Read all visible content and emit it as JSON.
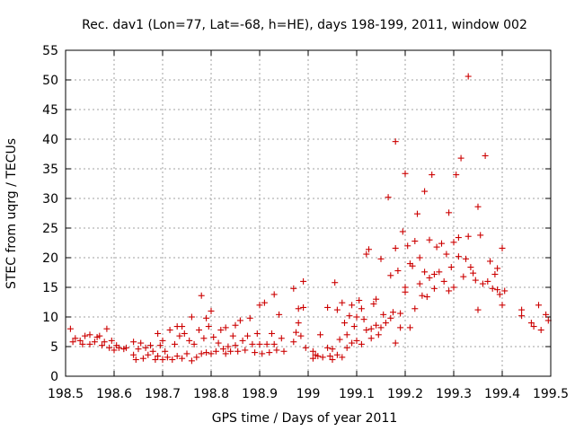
{
  "chart_data": {
    "type": "scatter",
    "title": "Rec. dav1 (Lon=77, Lat=-68, h=HE), days 198-199, 2011, window 002",
    "xlabel": "GPS time / Days of year 2011",
    "ylabel": "STEC from uqrg / TECUs",
    "xlim": [
      198.5,
      199.5
    ],
    "ylim": [
      0,
      55
    ],
    "xticks": [
      "198.5",
      "198.6",
      "198.7",
      "198.8",
      "198.9",
      "199",
      "199.1",
      "199.2",
      "199.3",
      "199.4",
      "199.5"
    ],
    "yticks": [
      "0",
      "5",
      "10",
      "15",
      "20",
      "25",
      "30",
      "35",
      "40",
      "45",
      "50",
      "55"
    ],
    "grid": true,
    "marker": "+",
    "color": "#cc0000",
    "points": [
      [
        198.51,
        8.0
      ],
      [
        198.515,
        5.8
      ],
      [
        198.52,
        6.4
      ],
      [
        198.53,
        6.0
      ],
      [
        198.535,
        5.4
      ],
      [
        198.54,
        6.8
      ],
      [
        198.55,
        7.0
      ],
      [
        198.55,
        5.4
      ],
      [
        198.56,
        5.8
      ],
      [
        198.565,
        6.6
      ],
      [
        198.57,
        6.8
      ],
      [
        198.575,
        5.2
      ],
      [
        198.58,
        5.8
      ],
      [
        198.585,
        8.0
      ],
      [
        198.59,
        4.8
      ],
      [
        198.595,
        6.0
      ],
      [
        198.6,
        4.4
      ],
      [
        198.605,
        5.2
      ],
      [
        198.61,
        4.8
      ],
      [
        198.62,
        4.6
      ],
      [
        198.625,
        4.8
      ],
      [
        198.64,
        5.8
      ],
      [
        198.64,
        3.6
      ],
      [
        198.645,
        2.8
      ],
      [
        198.65,
        4.6
      ],
      [
        198.655,
        5.6
      ],
      [
        198.66,
        3.0
      ],
      [
        198.665,
        4.8
      ],
      [
        198.67,
        3.6
      ],
      [
        198.675,
        5.2
      ],
      [
        198.68,
        4.2
      ],
      [
        198.685,
        2.8
      ],
      [
        198.69,
        7.2
      ],
      [
        198.69,
        3.4
      ],
      [
        198.695,
        5.2
      ],
      [
        198.7,
        6.0
      ],
      [
        198.7,
        2.8
      ],
      [
        198.705,
        4.2
      ],
      [
        198.71,
        3.2
      ],
      [
        198.715,
        7.8
      ],
      [
        198.72,
        2.8
      ],
      [
        198.725,
        5.4
      ],
      [
        198.73,
        8.4
      ],
      [
        198.73,
        3.4
      ],
      [
        198.735,
        6.8
      ],
      [
        198.74,
        8.4
      ],
      [
        198.74,
        3.0
      ],
      [
        198.745,
        7.2
      ],
      [
        198.75,
        3.8
      ],
      [
        198.755,
        6.0
      ],
      [
        198.76,
        10.0
      ],
      [
        198.76,
        2.6
      ],
      [
        198.765,
        5.4
      ],
      [
        198.77,
        3.2
      ],
      [
        198.775,
        7.8
      ],
      [
        198.78,
        13.6
      ],
      [
        198.78,
        3.8
      ],
      [
        198.785,
        6.4
      ],
      [
        198.79,
        9.8
      ],
      [
        198.79,
        4.0
      ],
      [
        198.795,
        8.4
      ],
      [
        198.8,
        11.0
      ],
      [
        198.8,
        3.8
      ],
      [
        198.805,
        6.6
      ],
      [
        198.81,
        4.2
      ],
      [
        198.815,
        5.6
      ],
      [
        198.82,
        7.8
      ],
      [
        198.825,
        4.6
      ],
      [
        198.83,
        8.2
      ],
      [
        198.83,
        3.8
      ],
      [
        198.835,
        5.0
      ],
      [
        198.84,
        4.2
      ],
      [
        198.845,
        6.8
      ],
      [
        198.85,
        8.6
      ],
      [
        198.85,
        5.2
      ],
      [
        198.855,
        4.2
      ],
      [
        198.86,
        9.4
      ],
      [
        198.865,
        6.0
      ],
      [
        198.87,
        4.4
      ],
      [
        198.875,
        6.8
      ],
      [
        198.88,
        9.8
      ],
      [
        198.885,
        5.4
      ],
      [
        198.89,
        4.0
      ],
      [
        198.895,
        7.2
      ],
      [
        198.9,
        12.0
      ],
      [
        198.9,
        5.4
      ],
      [
        198.905,
        3.8
      ],
      [
        198.91,
        12.4
      ],
      [
        198.915,
        5.4
      ],
      [
        198.92,
        4.0
      ],
      [
        198.925,
        7.2
      ],
      [
        198.93,
        13.8
      ],
      [
        198.93,
        5.4
      ],
      [
        198.935,
        4.4
      ],
      [
        198.94,
        10.4
      ],
      [
        198.945,
        6.4
      ],
      [
        198.95,
        4.2
      ],
      [
        198.97,
        14.8
      ],
      [
        198.97,
        5.8
      ],
      [
        198.975,
        7.4
      ],
      [
        198.98,
        11.4
      ],
      [
        198.98,
        9.0
      ],
      [
        198.985,
        6.8
      ],
      [
        198.99,
        16.0
      ],
      [
        198.99,
        11.6
      ],
      [
        198.995,
        4.8
      ],
      [
        199.01,
        4.2
      ],
      [
        199.01,
        3.0
      ],
      [
        199.015,
        3.6
      ],
      [
        199.02,
        3.4
      ],
      [
        199.025,
        7.0
      ],
      [
        199.03,
        3.2
      ],
      [
        199.04,
        11.6
      ],
      [
        199.04,
        4.8
      ],
      [
        199.045,
        3.4
      ],
      [
        199.05,
        4.6
      ],
      [
        199.05,
        2.8
      ],
      [
        199.055,
        15.8
      ],
      [
        199.06,
        11.2
      ],
      [
        199.06,
        3.6
      ],
      [
        199.065,
        6.2
      ],
      [
        199.07,
        12.4
      ],
      [
        199.07,
        3.2
      ],
      [
        199.075,
        9.0
      ],
      [
        199.08,
        7.0
      ],
      [
        199.08,
        4.8
      ],
      [
        199.085,
        10.2
      ],
      [
        199.09,
        5.6
      ],
      [
        199.09,
        12.0
      ],
      [
        199.095,
        8.4
      ],
      [
        199.1,
        10.0
      ],
      [
        199.1,
        6.0
      ],
      [
        199.105,
        12.8
      ],
      [
        199.11,
        11.4
      ],
      [
        199.11,
        5.4
      ],
      [
        199.115,
        9.6
      ],
      [
        199.12,
        7.8
      ],
      [
        199.12,
        20.6
      ],
      [
        199.125,
        21.4
      ],
      [
        199.13,
        8.0
      ],
      [
        199.13,
        6.4
      ],
      [
        199.135,
        12.2
      ],
      [
        199.14,
        13.0
      ],
      [
        199.14,
        8.6
      ],
      [
        199.145,
        7.0
      ],
      [
        199.15,
        19.8
      ],
      [
        199.15,
        8.2
      ],
      [
        199.155,
        10.4
      ],
      [
        199.16,
        9.0
      ],
      [
        199.165,
        30.2
      ],
      [
        199.17,
        17.0
      ],
      [
        199.17,
        9.8
      ],
      [
        199.175,
        10.8
      ],
      [
        199.18,
        39.6
      ],
      [
        199.18,
        21.6
      ],
      [
        199.18,
        5.6
      ],
      [
        199.185,
        17.8
      ],
      [
        199.19,
        10.6
      ],
      [
        199.19,
        8.2
      ],
      [
        199.195,
        24.4
      ],
      [
        199.2,
        15.0
      ],
      [
        199.2,
        34.2
      ],
      [
        199.2,
        14.2
      ],
      [
        199.205,
        22.0
      ],
      [
        199.21,
        8.2
      ],
      [
        199.21,
        19.0
      ],
      [
        199.215,
        18.6
      ],
      [
        199.22,
        22.8
      ],
      [
        199.22,
        11.4
      ],
      [
        199.225,
        27.4
      ],
      [
        199.23,
        20.0
      ],
      [
        199.23,
        15.6
      ],
      [
        199.235,
        13.6
      ],
      [
        199.24,
        31.2
      ],
      [
        199.24,
        17.6
      ],
      [
        199.245,
        13.4
      ],
      [
        199.25,
        23.0
      ],
      [
        199.25,
        16.6
      ],
      [
        199.255,
        34.0
      ],
      [
        199.26,
        17.2
      ],
      [
        199.26,
        14.8
      ],
      [
        199.265,
        21.8
      ],
      [
        199.27,
        17.6
      ],
      [
        199.275,
        22.4
      ],
      [
        199.28,
        16.0
      ],
      [
        199.285,
        20.6
      ],
      [
        199.29,
        27.6
      ],
      [
        199.29,
        14.4
      ],
      [
        199.295,
        18.4
      ],
      [
        199.3,
        22.6
      ],
      [
        199.3,
        15.0
      ],
      [
        199.305,
        34.0
      ],
      [
        199.31,
        23.4
      ],
      [
        199.31,
        20.2
      ],
      [
        199.315,
        36.8
      ],
      [
        199.32,
        16.8
      ],
      [
        199.325,
        19.8
      ],
      [
        199.33,
        23.6
      ],
      [
        199.33,
        50.6
      ],
      [
        199.335,
        18.4
      ],
      [
        199.34,
        17.4
      ],
      [
        199.345,
        16.2
      ],
      [
        199.35,
        28.6
      ],
      [
        199.35,
        11.2
      ],
      [
        199.355,
        23.8
      ],
      [
        199.36,
        15.6
      ],
      [
        199.365,
        37.2
      ],
      [
        199.37,
        16.0
      ],
      [
        199.375,
        19.4
      ],
      [
        199.38,
        14.8
      ],
      [
        199.385,
        17.2
      ],
      [
        199.39,
        18.2
      ],
      [
        199.39,
        14.6
      ],
      [
        199.395,
        13.8
      ],
      [
        199.4,
        21.6
      ],
      [
        199.4,
        12.0
      ],
      [
        199.405,
        14.4
      ],
      [
        199.44,
        11.2
      ],
      [
        199.44,
        10.2
      ],
      [
        199.46,
        9.0
      ],
      [
        199.465,
        8.4
      ],
      [
        199.475,
        12.0
      ],
      [
        199.48,
        7.8
      ],
      [
        199.49,
        10.4
      ],
      [
        199.495,
        9.4
      ]
    ]
  }
}
